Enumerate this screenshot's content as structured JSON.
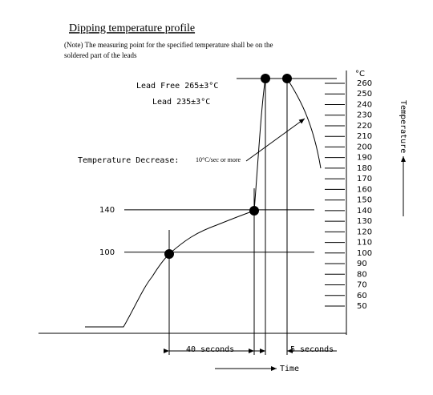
{
  "title": "Dipping temperature profile",
  "note": [
    "(Note) The measuring point for the specified temperature shall be on the",
    "soldered part of the leads"
  ],
  "annotations": {
    "lead_free": "Lead Free 265±3°C",
    "lead": "Lead 235±3°C",
    "decrease_main": "Temperature Decrease:",
    "decrease_rate": "10°C/sec or more"
  },
  "scale": {
    "unit": "°C",
    "ticks": [
      260,
      250,
      240,
      230,
      220,
      210,
      200,
      190,
      180,
      170,
      160,
      150,
      140,
      130,
      120,
      110,
      100,
      90,
      80,
      70,
      60,
      50
    ],
    "axis_label": "Temperature"
  },
  "levels": [
    140,
    100
  ],
  "durations": [
    "40 seconds",
    "5 seconds"
  ],
  "time_label": "Time"
}
